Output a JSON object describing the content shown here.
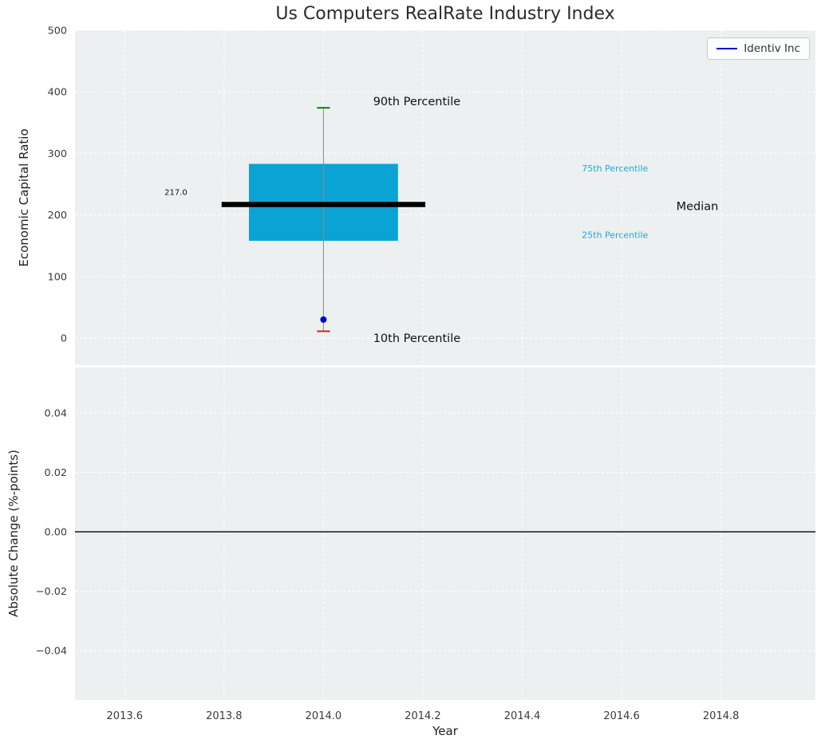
{
  "colors": {
    "figure_bg": "#ffffff",
    "panel_bg": "#ecf0f1",
    "grid": "#ffffff",
    "tick": "#3a3a3a",
    "title": "#2b2b2b",
    "axis_label": "#1f1f1f",
    "box_fill": "#0ba3d4",
    "median_line": "#000000",
    "whisker": "#8a8a8a",
    "cap_90th": "#008000",
    "cap_10th": "#cc2222",
    "company_dot": "#0000cd",
    "legend_line": "#0000cd",
    "zero_line": "#000000",
    "percentile_label": "#1fa8d4",
    "annotation_dark": "#111111"
  },
  "chart_data": {
    "type": "boxplot",
    "title": "Us Computers RealRate Industry Index",
    "x_axis": {
      "label": "Year",
      "lim": [
        2013.5,
        2014.99
      ],
      "ticks": [
        {
          "v": 2013.6,
          "label": "2013.6"
        },
        {
          "v": 2013.8,
          "label": "2013.8"
        },
        {
          "v": 2014.0,
          "label": "2014.0"
        },
        {
          "v": 2014.2,
          "label": "2014.2"
        },
        {
          "v": 2014.4,
          "label": "2014.4"
        },
        {
          "v": 2014.6,
          "label": "2014.6"
        },
        {
          "v": 2014.8,
          "label": "2014.8"
        }
      ]
    },
    "panels": [
      {
        "name": "economic-capital-ratio",
        "ylabel": "Economic Capital Ratio",
        "ylim": [
          -44,
          500
        ],
        "yticks": [
          {
            "v": 0,
            "label": "0"
          },
          {
            "v": 100,
            "label": "100"
          },
          {
            "v": 200,
            "label": "200"
          },
          {
            "v": 300,
            "label": "300"
          },
          {
            "v": 400,
            "label": "400"
          },
          {
            "v": 500,
            "label": "500"
          }
        ],
        "boxplot": {
          "x": 2014.0,
          "p10": 11,
          "q1": 158,
          "median": 217.0,
          "q3": 283,
          "p90": 374,
          "box_halfwidth": 0.15,
          "median_halfwidth": 0.205,
          "cap_halfwidth": 0.013
        },
        "company_point": {
          "name": "Identiv Inc",
          "x": 2014.0,
          "y": 30
        },
        "annotations": [
          {
            "text": "90th Percentile",
            "x": 2014.1,
            "y": 385,
            "size": 14.5,
            "color": "#111111"
          },
          {
            "text": "10th Percentile",
            "x": 2014.1,
            "y": 0,
            "size": 14.5,
            "color": "#111111"
          },
          {
            "text": "75th Percentile",
            "x": 2014.52,
            "y": 276,
            "size": 11,
            "color": "#1fa8d4"
          },
          {
            "text": "25th Percentile",
            "x": 2014.52,
            "y": 168,
            "size": 11,
            "color": "#1fa8d4"
          },
          {
            "text": "Median",
            "x": 2014.71,
            "y": 215,
            "size": 14.5,
            "color": "#111111"
          },
          {
            "text": "217.0",
            "x": 2013.68,
            "y": 237,
            "size": 10,
            "color": "#111111"
          }
        ]
      },
      {
        "name": "absolute-change",
        "ylabel": "Absolute Change (%-points)",
        "ylim": [
          -0.0566,
          0.0553
        ],
        "yticks": [
          {
            "v": 0.04,
            "label": "0.04"
          },
          {
            "v": 0.02,
            "label": "0.02"
          },
          {
            "v": 0.0,
            "label": "0.00"
          },
          {
            "v": -0.02,
            "label": "−0.02"
          },
          {
            "v": -0.04,
            "label": "−0.04"
          }
        ],
        "hline": 0.0
      }
    ],
    "legend": {
      "position": "upper right",
      "entries": [
        {
          "label": "Identiv Inc",
          "color": "#0000cd"
        }
      ]
    }
  }
}
